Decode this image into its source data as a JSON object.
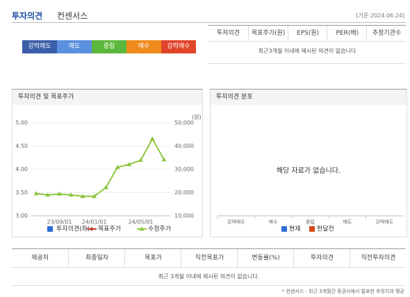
{
  "header": {
    "title": "투자의견",
    "subtitle": "컨센서스",
    "date": "[기준:2024.06.24]"
  },
  "scale": {
    "items": [
      {
        "label": "강력매도",
        "color": "#3a5ea8"
      },
      {
        "label": "매도",
        "color": "#5b8fe0"
      },
      {
        "label": "중립",
        "color": "#5cb83c"
      },
      {
        "label": "매수",
        "color": "#f08a1c"
      },
      {
        "label": "강력매수",
        "color": "#e0452a"
      }
    ]
  },
  "consensus_table": {
    "headers": [
      "투자의견",
      "목표주가(원)",
      "EPS(원)",
      "PER(배)",
      "추정기관수"
    ],
    "message": "최근3개월 이내에 제시된 의견이 없습니다"
  },
  "opinion_panel": {
    "title": "투자의견 및 목표주가"
  },
  "chart_data": {
    "type": "line",
    "categories": [
      null,
      null,
      "23/09/01",
      null,
      null,
      "24/01/01",
      null,
      null,
      null,
      "24/05/01",
      null,
      null
    ],
    "ylim": [
      3,
      5
    ],
    "yticks": [
      {
        "value": 3,
        "label": "3.00"
      },
      {
        "value": 3.5,
        "label": "3.50"
      },
      {
        "value": 4,
        "label": "4.00"
      },
      {
        "value": 4.5,
        "label": "4.50"
      },
      {
        "value": 5,
        "label": "5.00"
      }
    ],
    "y2lim": [
      10000,
      50000
    ],
    "y2ticks": [
      {
        "value": 10000,
        "label": "10,000"
      },
      {
        "value": 20000,
        "label": "20,000"
      },
      {
        "value": 30000,
        "label": "30,000"
      },
      {
        "value": 40000,
        "label": "40,000"
      },
      {
        "value": 50000,
        "label": "50,000"
      }
    ],
    "y2_label": "(원)",
    "grid": true,
    "series": [
      {
        "name": "투자의견(좌)",
        "color": "#2d6bd1",
        "values": [
          null,
          null,
          null,
          null,
          null,
          null,
          null,
          null,
          null,
          null,
          null,
          null
        ]
      },
      {
        "name": "목표주가",
        "color": "#c0392b",
        "axis": "y2",
        "values": [
          null,
          null,
          null,
          null,
          null,
          null,
          null,
          null,
          null,
          null,
          null,
          null
        ]
      },
      {
        "name": "수정주가",
        "color": "#8dc63f",
        "axis": "y2",
        "values": [
          19600,
          19000,
          19400,
          19000,
          18400,
          18400,
          22200,
          30900,
          32100,
          33900,
          43100,
          34200
        ]
      }
    ]
  },
  "distribution_panel": {
    "title": "투자의견 분포",
    "empty": "해당 자료가 없습니다.",
    "categories": [
      "강력매수",
      "매수",
      "중립",
      "매도",
      "강력매도"
    ],
    "legend": [
      {
        "name": "현재",
        "color": "#2c6fd6"
      },
      {
        "name": "한달전",
        "color": "#d64a1c"
      }
    ]
  },
  "report_table": {
    "headers": [
      "제공처",
      "최종일자",
      "목표가",
      "직전목표가",
      "변동률(%)",
      "투자의견",
      "직전투자의견"
    ],
    "message": "최근 3개월 이내에 제시된 의견이 없습니다."
  },
  "footnote": "* 컨센서스 : 최근 3개월간 증권사에서 발표한 추정치의 평균"
}
